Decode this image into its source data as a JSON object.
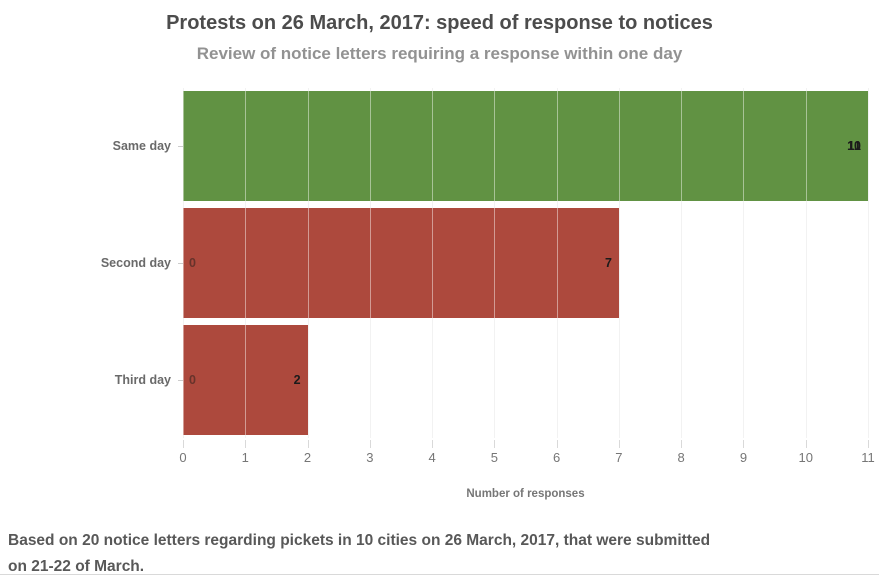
{
  "header": {
    "title": "Protests on 26 March, 2017: speed of response to notices",
    "subtitle": "Review of notice letters requiring a response within one day"
  },
  "chart_data": {
    "type": "bar",
    "orientation": "horizontal",
    "title": "Protests on 26 March, 2017: speed of response to notices",
    "subtitle": "Review of notice letters requiring a response within one day",
    "categories": [
      "Same day",
      "Second day",
      "Third day"
    ],
    "series": [
      {
        "name": "responses",
        "values": [
          11,
          7,
          2
        ]
      },
      {
        "name": "secondary-overlay-labels",
        "values": [
          10,
          0,
          0
        ]
      }
    ],
    "rows": [
      {
        "label": "Same day",
        "value": 11,
        "color": "#619243",
        "primary_label": "11",
        "secondary_label": "10",
        "secondary_position": "end"
      },
      {
        "label": "Second day",
        "value": 7,
        "color": "#ad493d",
        "primary_label": "7",
        "secondary_label": "0",
        "secondary_position": "start"
      },
      {
        "label": "Third day",
        "value": 2,
        "color": "#ad493d",
        "primary_label": "2",
        "secondary_label": "0",
        "secondary_position": "start"
      }
    ],
    "xlabel": "Number of responses",
    "ylabel": "",
    "xlim": [
      0,
      11
    ],
    "xticks": [
      0,
      1,
      2,
      3,
      4,
      5,
      6,
      7,
      8,
      9,
      10,
      11
    ],
    "grid": true,
    "legend": false
  },
  "colors": {
    "green_bar": "#619243",
    "red_bar": "#ad493d",
    "title_text": "#4c4c4c",
    "subtitle_text": "#929292",
    "axis_text": "#767676",
    "category_text": "#6a6a6a",
    "gridline": "#e8e8e8",
    "value_label": "#1b1b1b"
  },
  "footer": {
    "lines": [
      "Based on 20 notice letters regarding pickets in 10 cities on 26 March, 2017, that were submitted",
      "on 21-22 of March."
    ]
  }
}
